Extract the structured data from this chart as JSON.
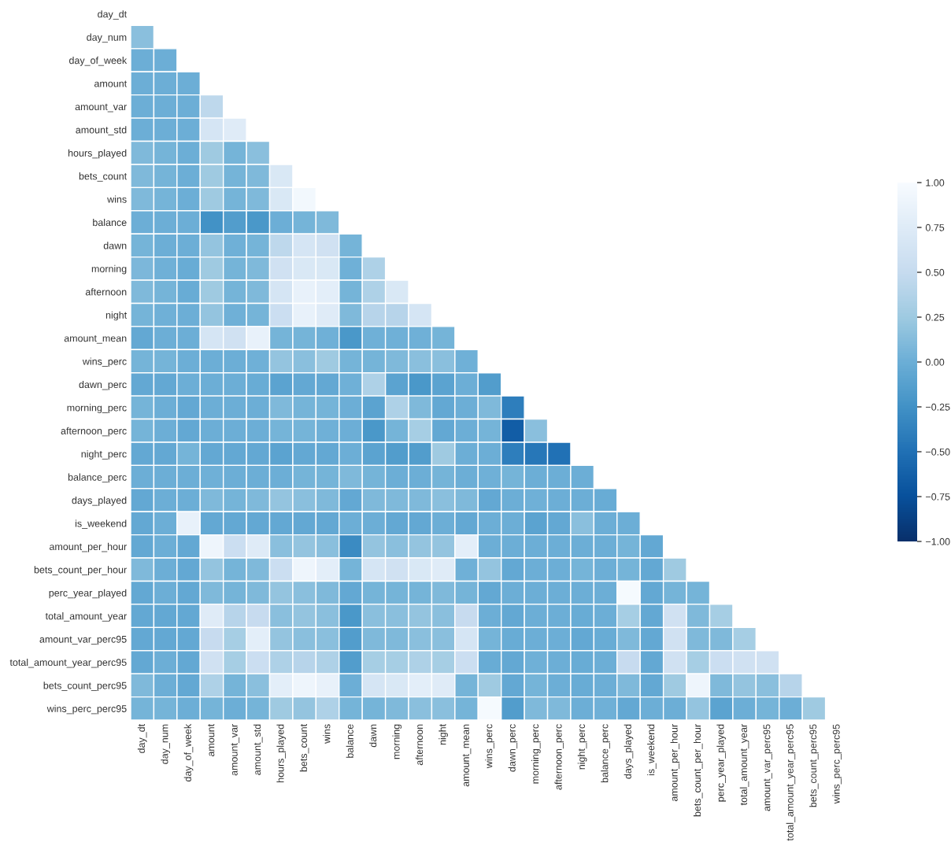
{
  "chart_data": {
    "type": "heatmap",
    "categories": [
      "day_dt",
      "day_num",
      "day_of_week",
      "amount",
      "amount_var",
      "amount_std",
      "hours_played",
      "bets_count",
      "wins",
      "balance",
      "dawn",
      "morning",
      "afternoon",
      "night",
      "amount_mean",
      "wins_perc",
      "dawn_perc",
      "morning_perc",
      "afternoon_perc",
      "night_perc",
      "balance_perc",
      "days_played",
      "is_weekend",
      "amount_per_hour",
      "bets_count_per_hour",
      "perc_year_played",
      "total_amount_year",
      "amount_var_perc95",
      "total_amount_year_perc95",
      "bets_count_perc95",
      "wins_perc_perc95"
    ],
    "y_categories": [
      "day_dt",
      "day_num",
      "day_of_week",
      "amount",
      "amount_var",
      "amount_std",
      "hours_played",
      "bets_count",
      "wins",
      "balance",
      "dawn",
      "morning",
      "afternoon",
      "night",
      "amount_mean",
      "wins_perc",
      "dawn_perc",
      "morning_perc",
      "afternoon_perc",
      "night_perc",
      "balance_perc",
      "days_played",
      "is_weekend",
      "amount_per_hour",
      "bets_count_per_hour",
      "perc_year_played",
      "total_amount_year",
      "amount_var_perc95",
      "total_amount_year_perc95",
      "bets_count_perc95",
      "wins_perc_perc95"
    ],
    "cells": [
      [
        null,
        null,
        null,
        null,
        null,
        null,
        null,
        null,
        null,
        null,
        null,
        null,
        null,
        null,
        null,
        null,
        null,
        null,
        null,
        null,
        null,
        null,
        null,
        null,
        null,
        null,
        null,
        null,
        null,
        null,
        null
      ],
      [
        0.15,
        null,
        null,
        null,
        null,
        null,
        null,
        null,
        null,
        null,
        null,
        null,
        null,
        null,
        null,
        null,
        null,
        null,
        null,
        null,
        null,
        null,
        null,
        null,
        null,
        null,
        null,
        null,
        null,
        null,
        null
      ],
      [
        0,
        0,
        null,
        null,
        null,
        null,
        null,
        null,
        null,
        null,
        null,
        null,
        null,
        null,
        null,
        null,
        null,
        null,
        null,
        null,
        null,
        null,
        null,
        null,
        null,
        null,
        null,
        null,
        null,
        null,
        null
      ],
      [
        0,
        0,
        0,
        null,
        null,
        null,
        null,
        null,
        null,
        null,
        null,
        null,
        null,
        null,
        null,
        null,
        null,
        null,
        null,
        null,
        null,
        null,
        null,
        null,
        null,
        null,
        null,
        null,
        null,
        null,
        null
      ],
      [
        0,
        0,
        0,
        0.45,
        null,
        null,
        null,
        null,
        null,
        null,
        null,
        null,
        null,
        null,
        null,
        null,
        null,
        null,
        null,
        null,
        null,
        null,
        null,
        null,
        null,
        null,
        null,
        null,
        null,
        null,
        null
      ],
      [
        0,
        0,
        0,
        0.65,
        0.75,
        null,
        null,
        null,
        null,
        null,
        null,
        null,
        null,
        null,
        null,
        null,
        null,
        null,
        null,
        null,
        null,
        null,
        null,
        null,
        null,
        null,
        null,
        null,
        null,
        null,
        null
      ],
      [
        0.1,
        0.05,
        0,
        0.25,
        0.05,
        0.15,
        null,
        null,
        null,
        null,
        null,
        null,
        null,
        null,
        null,
        null,
        null,
        null,
        null,
        null,
        null,
        null,
        null,
        null,
        null,
        null,
        null,
        null,
        null,
        null,
        null
      ],
      [
        0.1,
        0.05,
        0,
        0.25,
        0.05,
        0.1,
        0.7,
        null,
        null,
        null,
        null,
        null,
        null,
        null,
        null,
        null,
        null,
        null,
        null,
        null,
        null,
        null,
        null,
        null,
        null,
        null,
        null,
        null,
        null,
        null,
        null
      ],
      [
        0.1,
        0.05,
        0,
        0.25,
        0.05,
        0.1,
        0.7,
        0.95,
        null,
        null,
        null,
        null,
        null,
        null,
        null,
        null,
        null,
        null,
        null,
        null,
        null,
        null,
        null,
        null,
        null,
        null,
        null,
        null,
        null,
        null,
        null
      ],
      [
        0,
        0,
        0,
        -0.25,
        -0.15,
        -0.2,
        0,
        0.05,
        0.1,
        null,
        null,
        null,
        null,
        null,
        null,
        null,
        null,
        null,
        null,
        null,
        null,
        null,
        null,
        null,
        null,
        null,
        null,
        null,
        null,
        null,
        null
      ],
      [
        0.05,
        0,
        0,
        0.2,
        0.02,
        0.05,
        0.45,
        0.65,
        0.6,
        0.05,
        null,
        null,
        null,
        null,
        null,
        null,
        null,
        null,
        null,
        null,
        null,
        null,
        null,
        null,
        null,
        null,
        null,
        null,
        null,
        null,
        null
      ],
      [
        0.08,
        0.02,
        -0.02,
        0.25,
        0.05,
        0.1,
        0.6,
        0.7,
        0.7,
        0.02,
        0.35,
        null,
        null,
        null,
        null,
        null,
        null,
        null,
        null,
        null,
        null,
        null,
        null,
        null,
        null,
        null,
        null,
        null,
        null,
        null,
        null
      ],
      [
        0.1,
        0.05,
        -0.02,
        0.25,
        0.05,
        0.1,
        0.65,
        0.85,
        0.8,
        0.05,
        0.35,
        0.7,
        null,
        null,
        null,
        null,
        null,
        null,
        null,
        null,
        null,
        null,
        null,
        null,
        null,
        null,
        null,
        null,
        null,
        null,
        null
      ],
      [
        0.05,
        0.02,
        0,
        0.2,
        0.02,
        0.05,
        0.55,
        0.85,
        0.75,
        0.1,
        0.4,
        0.4,
        0.65,
        null,
        null,
        null,
        null,
        null,
        null,
        null,
        null,
        null,
        null,
        null,
        null,
        null,
        null,
        null,
        null,
        null,
        null
      ],
      [
        -0.05,
        0,
        0,
        0.65,
        0.6,
        0.85,
        0.05,
        0.05,
        0.02,
        -0.2,
        0.02,
        0.02,
        0.02,
        0.05,
        null,
        null,
        null,
        null,
        null,
        null,
        null,
        null,
        null,
        null,
        null,
        null,
        null,
        null,
        null,
        null,
        null
      ],
      [
        0.05,
        0.05,
        0,
        0,
        0,
        0.02,
        0.2,
        0.15,
        0.25,
        0.05,
        0.05,
        0.1,
        0.15,
        0.15,
        0.02,
        null,
        null,
        null,
        null,
        null,
        null,
        null,
        null,
        null,
        null,
        null,
        null,
        null,
        null,
        null,
        null
      ],
      [
        -0.05,
        -0.05,
        0,
        0,
        0,
        -0.02,
        -0.1,
        -0.05,
        -0.05,
        0.02,
        0.35,
        -0.1,
        -0.2,
        -0.1,
        0,
        -0.15,
        null,
        null,
        null,
        null,
        null,
        null,
        null,
        null,
        null,
        null,
        null,
        null,
        null,
        null,
        null
      ],
      [
        0.05,
        0,
        -0.05,
        0,
        0,
        0,
        0.1,
        0.05,
        0.05,
        0,
        -0.1,
        0.35,
        0.1,
        -0.05,
        0,
        0.1,
        -0.4,
        null,
        null,
        null,
        null,
        null,
        null,
        null,
        null,
        null,
        null,
        null,
        null,
        null,
        null
      ],
      [
        0.05,
        0,
        -0.05,
        0,
        0,
        0,
        0.05,
        0.05,
        0.02,
        0,
        -0.2,
        0.05,
        0.3,
        -0.05,
        0,
        0.05,
        -0.65,
        0.15,
        null,
        null,
        null,
        null,
        null,
        null,
        null,
        null,
        null,
        null,
        null,
        null,
        null
      ],
      [
        -0.05,
        -0.05,
        0.05,
        -0.05,
        -0.05,
        -0.05,
        -0.1,
        -0.05,
        -0.05,
        0,
        -0.1,
        -0.15,
        -0.15,
        0.25,
        0,
        0,
        -0.4,
        -0.45,
        -0.5,
        null,
        null,
        null,
        null,
        null,
        null,
        null,
        null,
        null,
        null,
        null,
        null
      ],
      [
        0,
        0,
        0,
        0.02,
        0,
        0,
        0,
        0.05,
        0.05,
        0.1,
        0.05,
        0,
        0,
        0.05,
        0,
        0.02,
        0.05,
        0,
        0,
        0,
        null,
        null,
        null,
        null,
        null,
        null,
        null,
        null,
        null,
        null,
        null
      ],
      [
        -0.05,
        0,
        0,
        0.1,
        0.05,
        0.1,
        0.2,
        0.15,
        0.1,
        -0.05,
        0.1,
        0.1,
        0.1,
        0.15,
        0.1,
        -0.05,
        0,
        0.02,
        0,
        0,
        -0.02,
        null,
        null,
        null,
        null,
        null,
        null,
        null,
        null,
        null,
        null
      ],
      [
        -0.05,
        0,
        0.85,
        -0.05,
        -0.05,
        -0.05,
        -0.05,
        -0.05,
        -0.05,
        0,
        0,
        -0.05,
        -0.05,
        0,
        -0.05,
        0,
        0,
        -0.1,
        -0.05,
        0.15,
        0,
        0,
        null,
        null,
        null,
        null,
        null,
        null,
        null,
        null,
        null
      ],
      [
        -0.05,
        0,
        -0.05,
        0.9,
        0.55,
        0.75,
        0.15,
        0.2,
        0.15,
        -0.3,
        0.2,
        0.15,
        0.2,
        0.2,
        0.8,
        0,
        0,
        0,
        0,
        0,
        0,
        0.05,
        -0.05,
        null,
        null,
        null,
        null,
        null,
        null,
        null,
        null
      ],
      [
        0.1,
        0,
        -0.05,
        0.2,
        0.05,
        0.1,
        0.55,
        0.9,
        0.8,
        0.05,
        0.65,
        0.6,
        0.7,
        0.75,
        0.02,
        0.2,
        -0.05,
        0,
        0,
        0.05,
        0,
        0.05,
        -0.05,
        0.25,
        null,
        null,
        null,
        null,
        null,
        null,
        null
      ],
      [
        -0.05,
        0,
        -0.05,
        0.1,
        0.05,
        0.1,
        0.2,
        0.15,
        0.1,
        -0.05,
        0.05,
        0.05,
        0.05,
        0.1,
        0.05,
        -0.05,
        0,
        0,
        0,
        0,
        0,
        0.98,
        -0.05,
        0.05,
        0.05,
        null,
        null,
        null,
        null,
        null,
        null
      ],
      [
        -0.05,
        -0.05,
        -0.05,
        0.75,
        0.4,
        0.5,
        0.15,
        0.2,
        0.15,
        -0.2,
        0.15,
        0.15,
        0.2,
        0.15,
        0.5,
        0,
        -0.05,
        0,
        0,
        -0.02,
        0,
        0.3,
        -0.05,
        0.6,
        0.1,
        0.3,
        null,
        null,
        null,
        null,
        null
      ],
      [
        -0.05,
        -0.05,
        -0.05,
        0.5,
        0.3,
        0.8,
        0.2,
        0.15,
        0.15,
        -0.15,
        0.1,
        0.1,
        0.15,
        0.15,
        0.65,
        0.05,
        -0.02,
        0,
        0,
        -0.05,
        -0.02,
        0.1,
        -0.05,
        0.6,
        0.1,
        0.1,
        0.3,
        null,
        null,
        null,
        null
      ],
      [
        -0.05,
        0,
        -0.05,
        0.6,
        0.3,
        0.55,
        0.35,
        0.4,
        0.35,
        -0.15,
        0.3,
        0.3,
        0.35,
        0.3,
        0.55,
        -0.02,
        -0.05,
        0.02,
        0,
        -0.02,
        0,
        0.5,
        -0.05,
        0.6,
        0.3,
        0.55,
        0.6,
        0.6,
        null,
        null,
        null
      ],
      [
        0.1,
        0,
        -0.05,
        0.35,
        0.05,
        0.15,
        0.8,
        0.9,
        0.85,
        0,
        0.65,
        0.7,
        0.8,
        0.75,
        0.05,
        0.25,
        -0.05,
        0.05,
        0,
        -0.02,
        0,
        0.1,
        -0.05,
        0.25,
        0.9,
        0.1,
        0.2,
        0.15,
        0.4,
        null,
        null
      ],
      [
        0.05,
        0.05,
        0,
        0.05,
        0,
        0.05,
        0.25,
        0.2,
        0.35,
        0.05,
        0.05,
        0.1,
        0.15,
        0.15,
        0.05,
        0.98,
        -0.15,
        0.1,
        0.1,
        0,
        0.02,
        -0.05,
        0,
        0,
        0.2,
        -0.1,
        0,
        0.05,
        0,
        0.25,
        null
      ]
    ],
    "clim": [
      -1,
      1
    ],
    "cticks": [
      {
        "value": -1,
        "label": "−1.00"
      },
      {
        "value": -0.75,
        "label": "−0.75"
      },
      {
        "value": -0.5,
        "label": "−0.50"
      },
      {
        "value": -0.25,
        "label": "−0.25"
      },
      {
        "value": 0,
        "label": "0.00"
      },
      {
        "value": 0.25,
        "label": "0.25"
      },
      {
        "value": 0.5,
        "label": "0.50"
      },
      {
        "value": 0.75,
        "label": "0.75"
      },
      {
        "value": 1,
        "label": "1.00"
      }
    ]
  }
}
